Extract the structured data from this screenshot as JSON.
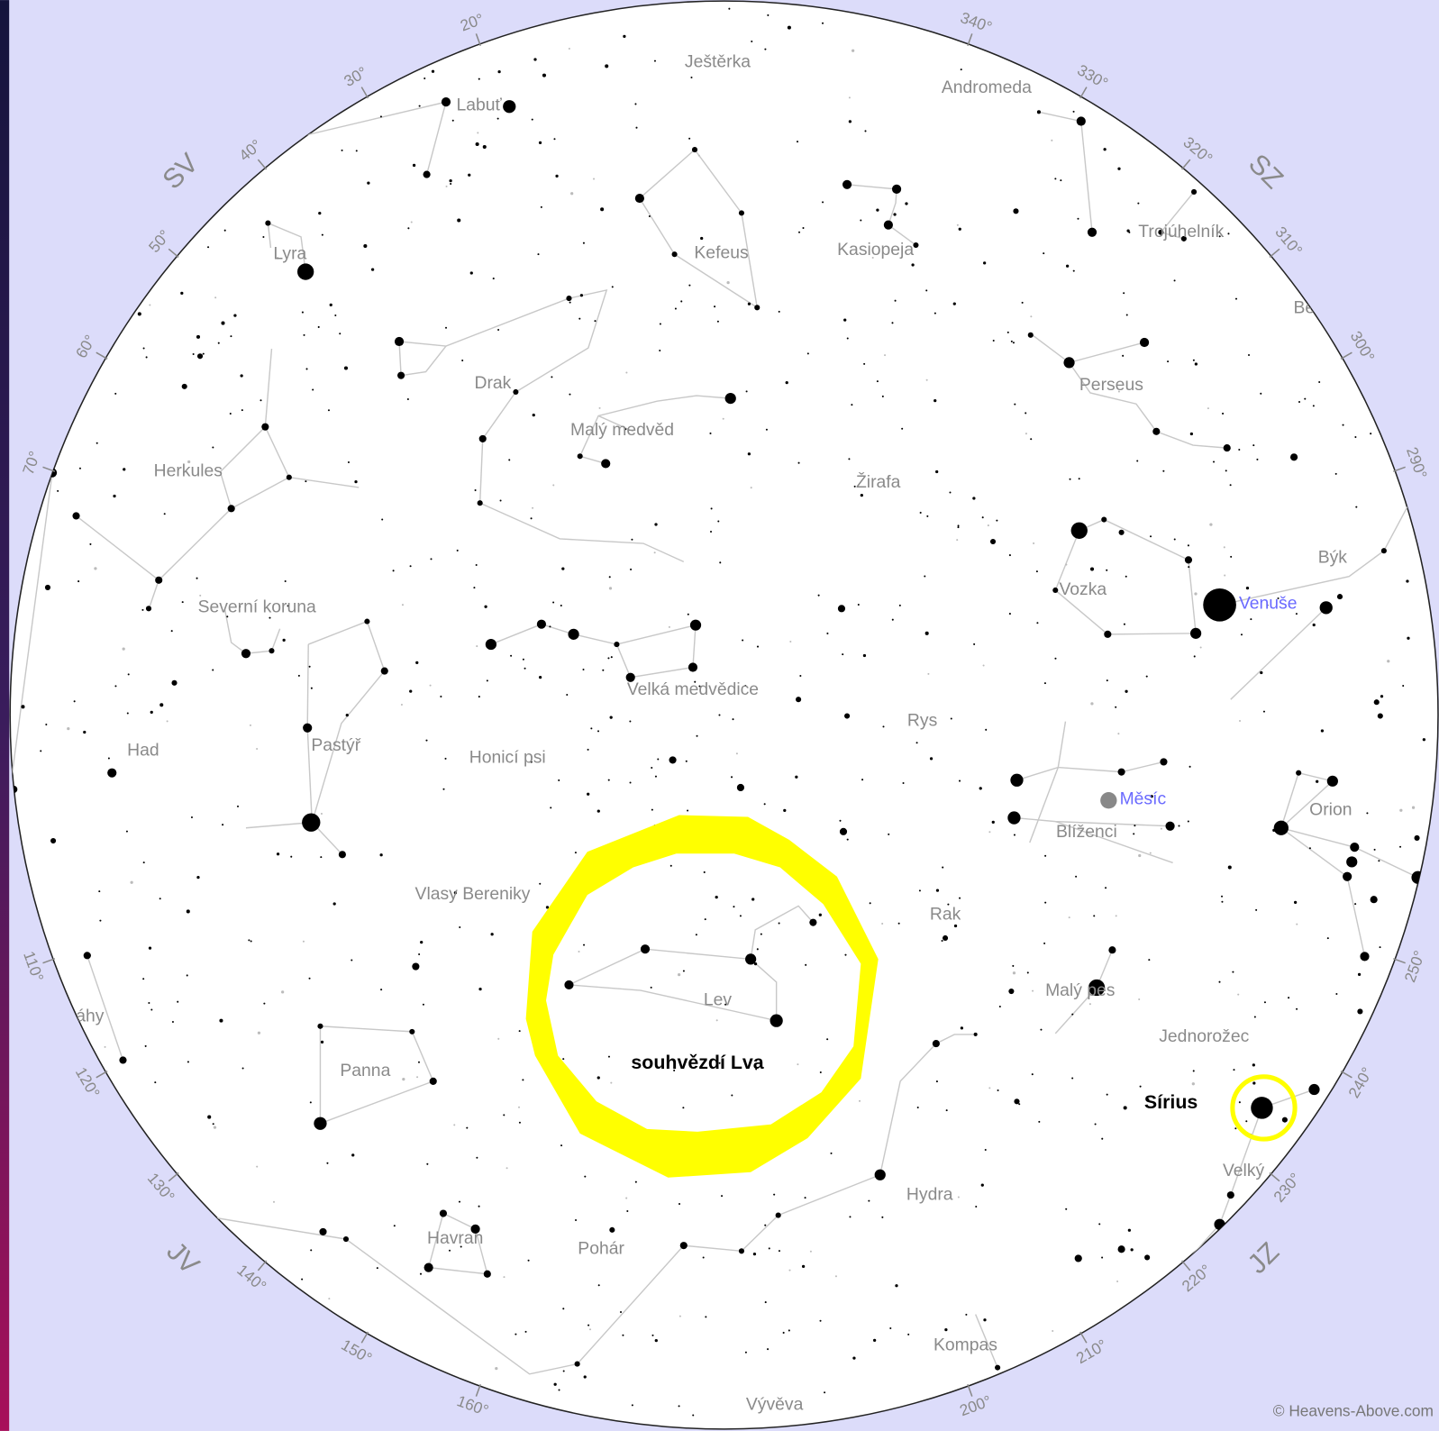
{
  "constellations": [
    "Ještěrka",
    "Andromeda",
    "Labuť",
    "Lyra",
    "Kefeus",
    "Kasiopeja",
    "Trojúhelník",
    "Be",
    "Drak",
    "Perseus",
    "Malý medvěd",
    "Herkules",
    "Žirafa",
    "Býk",
    "Vozka",
    "Severní koruna",
    "Velká medvědice",
    "Rys",
    "Had",
    "Pastýř",
    "Honicí psi",
    "Orion",
    "Blíženci",
    "Vlasy Bereniky",
    "Rak",
    "Lev",
    "Malý pes",
    "áhy",
    "Jednorožec",
    "Panna",
    "Velký",
    "Hydra",
    "Havran",
    "Pohár",
    "Kompas",
    "Vývěva"
  ],
  "planets": [
    "Venuše",
    "Měsíc"
  ],
  "annotations": {
    "leo": "souhvězdí Lva",
    "sirius": "Sírius"
  },
  "directions": [
    "SV",
    "SZ",
    "JV",
    "JZ"
  ],
  "azimuth_labels": [
    {
      "value": 20,
      "label": "20°"
    },
    {
      "value": 30,
      "label": "30°"
    },
    {
      "value": 40,
      "label": "40°"
    },
    {
      "value": 50,
      "label": "50°"
    },
    {
      "value": 60,
      "label": "60°"
    },
    {
      "value": 70,
      "label": "70°"
    },
    {
      "value": 110,
      "label": "110°"
    },
    {
      "value": 120,
      "label": "120°"
    },
    {
      "value": 130,
      "label": "130°"
    },
    {
      "value": 140,
      "label": "140°"
    },
    {
      "value": 150,
      "label": "150°"
    },
    {
      "value": 160,
      "label": "160°"
    },
    {
      "value": 200,
      "label": "200°"
    },
    {
      "value": 210,
      "label": "210°"
    },
    {
      "value": 220,
      "label": "220°"
    },
    {
      "value": 230,
      "label": "230°"
    },
    {
      "value": 240,
      "label": "240°"
    },
    {
      "value": 250,
      "label": "250°"
    },
    {
      "value": 290,
      "label": "290°"
    },
    {
      "value": 300,
      "label": "300°"
    },
    {
      "value": 310,
      "label": "310°"
    },
    {
      "value": 320,
      "label": "320°"
    },
    {
      "value": 330,
      "label": "330°"
    },
    {
      "value": 340,
      "label": "340°"
    }
  ],
  "copyright": "© Heavens-Above.com"
}
